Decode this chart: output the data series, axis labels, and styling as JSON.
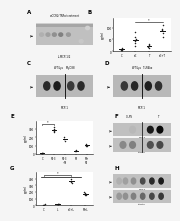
{
  "bg_color": "#f5f5f5",
  "wb_bg": "#c8c8c8",
  "wb_bg2": "#d0d0d0",
  "band_colors_a": [
    "#909090",
    "#808080",
    "#707070",
    "#606060",
    "#787878",
    "#b0b0b0",
    "#c8c8c8",
    "#d8d8d8"
  ],
  "band_colors_c1": [
    "#303030",
    "#282828"
  ],
  "band_colors_c2": [
    "#484848",
    "#383838"
  ],
  "band_colors_d1": [
    "#404040",
    "#383838"
  ],
  "band_colors_d2": [
    "#282828",
    "#383838"
  ],
  "dot_color": "#222222",
  "mean_color": "#111111",
  "spine_color": "#333333",
  "header_line_color": "#555555"
}
